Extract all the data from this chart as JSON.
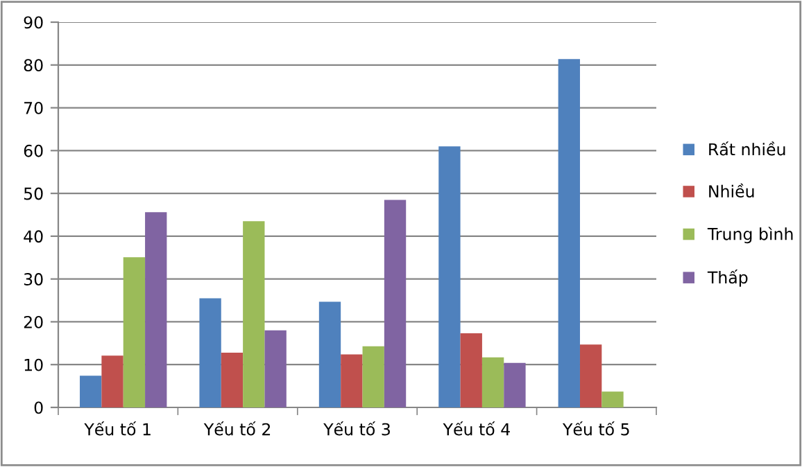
{
  "chart_data": {
    "type": "bar",
    "categories": [
      "Yếu tố 1",
      "Yếu tố 2",
      "Yếu tố 3",
      "Yếu tố 4",
      "Yếu tố 5"
    ],
    "series": [
      {
        "name": "Rất nhiều",
        "color": "#4f81bd",
        "values": [
          7.4,
          25.5,
          24.7,
          61.0,
          81.4
        ]
      },
      {
        "name": "Nhiều",
        "color": "#c0504d",
        "values": [
          12.1,
          12.8,
          12.4,
          17.3,
          14.7
        ]
      },
      {
        "name": "Trung bình",
        "color": "#9bbb59",
        "values": [
          35.1,
          43.5,
          14.3,
          11.7,
          3.7
        ]
      },
      {
        "name": "Thấp",
        "color": "#8064a2",
        "values": [
          45.6,
          18.0,
          48.5,
          10.4,
          0
        ]
      }
    ],
    "ylim": [
      0,
      90
    ],
    "yticks": [
      0,
      10,
      20,
      30,
      40,
      50,
      60,
      70,
      80,
      90
    ],
    "grid": "y",
    "legend": "right"
  }
}
